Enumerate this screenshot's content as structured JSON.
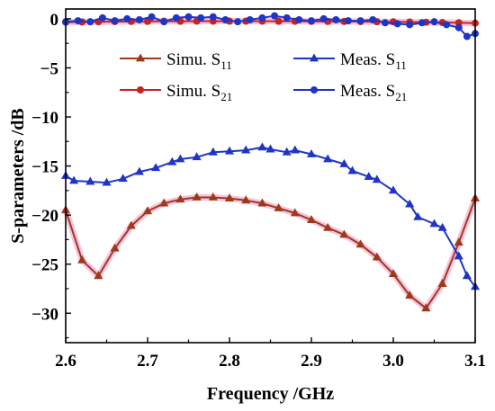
{
  "chart_data": {
    "type": "line",
    "xlabel": "Frequency /GHz",
    "ylabel": "S-parameters /dB",
    "xlim": [
      2.6,
      3.1
    ],
    "ylim": [
      -33,
      1
    ],
    "x_ticks": [
      "2.6",
      "2.7",
      "2.8",
      "2.9",
      "3.0",
      "3.1"
    ],
    "y_ticks": [
      "0",
      "−5",
      "−10",
      "−15",
      "−20",
      "−25",
      "−30"
    ],
    "grid": false,
    "legend_placement": "top, inside plot, two columns",
    "series": [
      {
        "name": "Simu. S11",
        "legend_main": "Simu. S",
        "legend_sub": "11",
        "color": "#a0391c",
        "marker": "triangle",
        "x": [
          2.6,
          2.62,
          2.64,
          2.66,
          2.68,
          2.7,
          2.72,
          2.74,
          2.76,
          2.78,
          2.8,
          2.82,
          2.84,
          2.86,
          2.88,
          2.9,
          2.92,
          2.94,
          2.96,
          2.98,
          3.0,
          3.02,
          3.04,
          3.06,
          3.08,
          3.1
        ],
        "y": [
          -19.5,
          -24.6,
          -26.2,
          -23.4,
          -21.1,
          -19.6,
          -18.8,
          -18.4,
          -18.2,
          -18.2,
          -18.3,
          -18.5,
          -18.8,
          -19.3,
          -19.8,
          -20.5,
          -21.3,
          -22.0,
          -23.0,
          -24.3,
          -26.0,
          -28.2,
          -29.5,
          -27.0,
          -22.8,
          -18.3
        ]
      },
      {
        "name": "Simu. S21",
        "legend_main": "Simu. S",
        "legend_sub": "21",
        "color": "#c8231e",
        "marker": "circle",
        "x": [
          2.6,
          2.62,
          2.64,
          2.66,
          2.68,
          2.7,
          2.72,
          2.74,
          2.76,
          2.78,
          2.8,
          2.82,
          2.84,
          2.86,
          2.88,
          2.9,
          2.92,
          2.94,
          2.96,
          2.98,
          3.0,
          3.02,
          3.04,
          3.06,
          3.08,
          3.1
        ],
        "y": [
          -0.35,
          -0.32,
          -0.3,
          -0.28,
          -0.27,
          -0.26,
          -0.25,
          -0.25,
          -0.24,
          -0.24,
          -0.24,
          -0.24,
          -0.24,
          -0.25,
          -0.25,
          -0.26,
          -0.27,
          -0.27,
          -0.28,
          -0.3,
          -0.31,
          -0.33,
          -0.35,
          -0.38,
          -0.4,
          -0.44
        ]
      },
      {
        "name": "Meas. S11",
        "legend_main": "Meas. S",
        "legend_sub": "11",
        "color": "#1f35c6",
        "marker": "triangle",
        "x": [
          2.6,
          2.61,
          2.63,
          2.65,
          2.67,
          2.69,
          2.71,
          2.73,
          2.74,
          2.76,
          2.78,
          2.8,
          2.82,
          2.84,
          2.85,
          2.87,
          2.88,
          2.9,
          2.92,
          2.94,
          2.95,
          2.97,
          2.98,
          3.0,
          3.02,
          3.03,
          3.05,
          3.06,
          3.08,
          3.09,
          3.1
        ],
        "y": [
          -16.0,
          -16.5,
          -16.6,
          -16.7,
          -16.3,
          -15.6,
          -15.2,
          -14.6,
          -14.3,
          -14.1,
          -13.6,
          -13.5,
          -13.4,
          -13.1,
          -13.3,
          -13.6,
          -13.4,
          -13.8,
          -14.3,
          -14.8,
          -15.5,
          -16.1,
          -16.4,
          -17.5,
          -18.9,
          -20.2,
          -20.9,
          -21.3,
          -24.2,
          -26.2,
          -27.3
        ]
      },
      {
        "name": "Meas. S21",
        "legend_main": "Meas. S",
        "legend_sub": "21",
        "color": "#1f35c6",
        "marker": "circle",
        "x": [
          2.6,
          2.615,
          2.63,
          2.645,
          2.66,
          2.675,
          2.69,
          2.705,
          2.72,
          2.735,
          2.75,
          2.765,
          2.78,
          2.795,
          2.81,
          2.825,
          2.84,
          2.855,
          2.87,
          2.885,
          2.9,
          2.915,
          2.93,
          2.945,
          2.96,
          2.975,
          2.99,
          3.005,
          3.02,
          3.035,
          3.05,
          3.065,
          3.08,
          3.09,
          3.1
        ],
        "y": [
          -0.3,
          -0.2,
          -0.3,
          0.1,
          -0.2,
          0.0,
          -0.1,
          0.2,
          -0.3,
          0.1,
          0.2,
          0.1,
          0.2,
          -0.1,
          -0.3,
          -0.1,
          0.1,
          0.3,
          0.1,
          -0.1,
          -0.2,
          0.0,
          -0.1,
          -0.2,
          -0.2,
          -0.1,
          -0.4,
          -0.5,
          -0.6,
          -0.4,
          -0.3,
          -0.6,
          -0.9,
          -1.8,
          -1.5
        ]
      }
    ]
  }
}
